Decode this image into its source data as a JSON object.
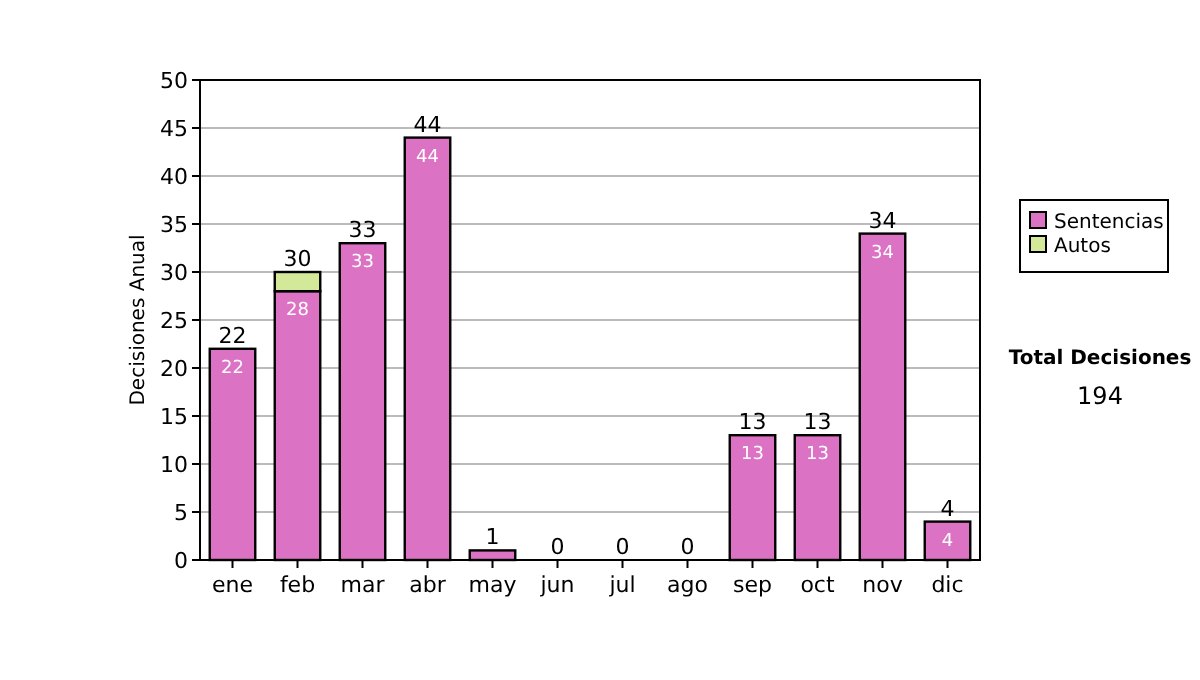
{
  "chart_data": {
    "type": "bar",
    "ylabel": "Decisiones Anual",
    "categories": [
      "ene",
      "feb",
      "mar",
      "abr",
      "may",
      "jun",
      "jul",
      "ago",
      "sep",
      "oct",
      "nov",
      "dic"
    ],
    "series": [
      {
        "name": "Sentencias",
        "color": "#dc72c4",
        "values": [
          22,
          28,
          33,
          44,
          1,
          0,
          0,
          0,
          13,
          13,
          34,
          4
        ],
        "value_labels": [
          "22",
          "28",
          "33",
          "44",
          null,
          null,
          null,
          null,
          "13",
          "13",
          "34",
          "4"
        ]
      },
      {
        "name": "Autos",
        "color": "#d4e89a",
        "values": [
          0,
          2,
          0,
          0,
          0,
          0,
          0,
          0,
          0,
          0,
          0,
          0
        ]
      }
    ],
    "stacked": true,
    "totals": [
      "22",
      "30",
      "33",
      "44",
      "1",
      "0",
      "0",
      "0",
      "13",
      "13",
      "34",
      "4"
    ],
    "ylim": [
      0,
      50
    ],
    "yticks": [
      0,
      5,
      10,
      15,
      20,
      25,
      30,
      35,
      40,
      45,
      50
    ],
    "grid": "y",
    "legend": "right",
    "annotations": [
      "Total Decisiones",
      "194"
    ]
  }
}
